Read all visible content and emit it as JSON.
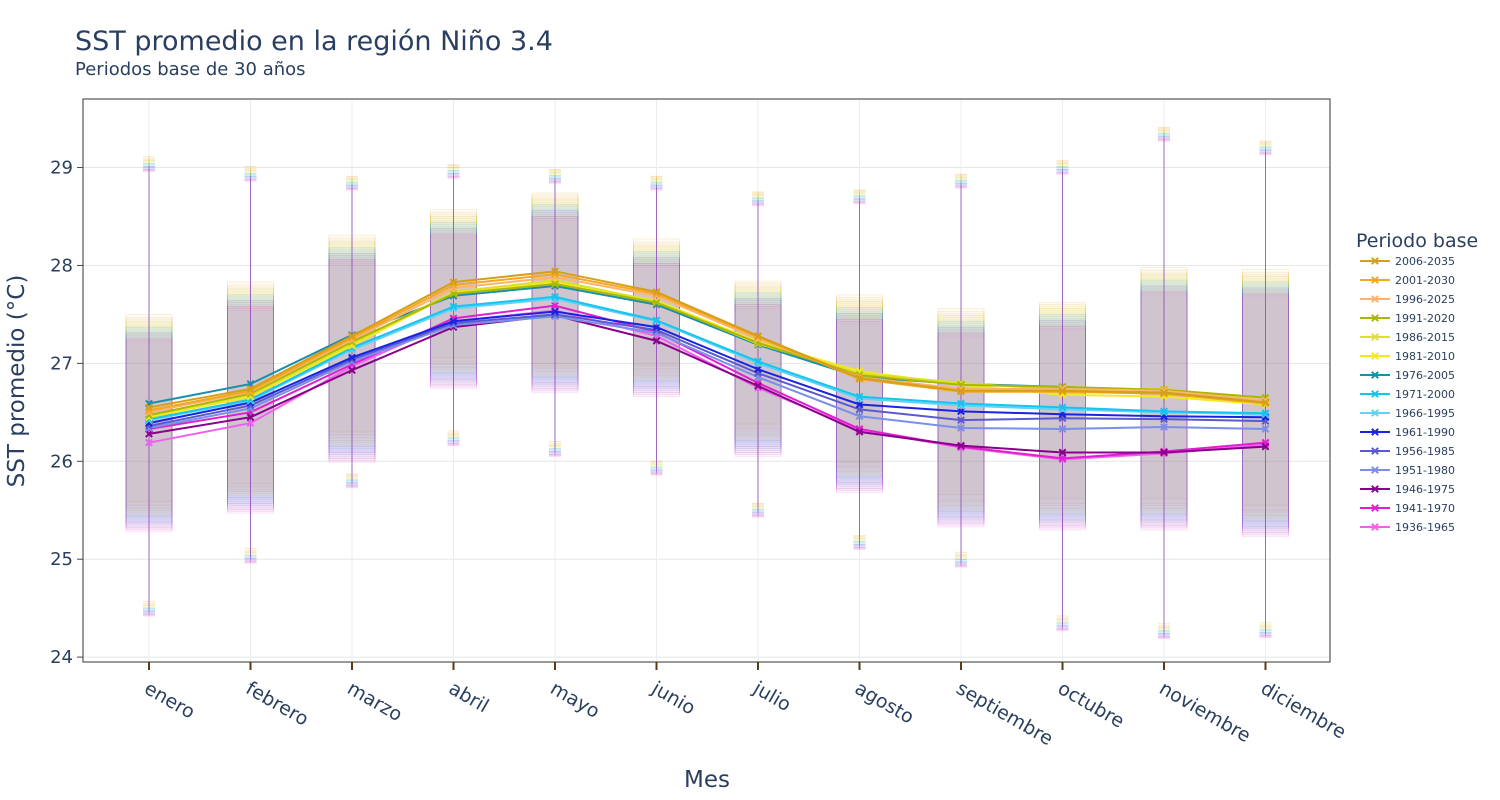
{
  "chart_data": {
    "type": "line",
    "title": "SST promedio en la región Niño 3.4",
    "subtitle": "Periodos base de 30 años",
    "xlabel": "Mes",
    "ylabel": "SST promedio (°C)",
    "ylim": [
      23.95,
      29.7
    ],
    "yticks": [
      24,
      25,
      26,
      27,
      28,
      29
    ],
    "grid": true,
    "legend_title": "Periodo base",
    "legend_position": "right",
    "categories": [
      "enero",
      "febrero",
      "marzo",
      "abril",
      "mayo",
      "junio",
      "julio",
      "agosto",
      "septiembre",
      "octubre",
      "noviembre",
      "diciembre"
    ],
    "series": [
      {
        "name": "2006-2035",
        "color": "#d4a017",
        "values": [
          26.55,
          26.74,
          27.28,
          27.83,
          27.94,
          27.73,
          27.28,
          26.85,
          26.72,
          26.72,
          26.7,
          26.6
        ],
        "q1": [
          25.59,
          25.77,
          26.3,
          27.06,
          27.0,
          26.98,
          26.38,
          25.99,
          25.66,
          25.62,
          25.62,
          25.55
        ],
        "q3": [
          27.5,
          27.83,
          28.31,
          28.57,
          28.74,
          28.27,
          27.84,
          27.7,
          27.56,
          27.62,
          27.98,
          27.96
        ],
        "min": [
          24.57,
          25.11,
          25.87,
          26.31,
          26.2,
          26.0,
          25.57,
          25.24,
          25.07,
          24.42,
          24.34,
          24.35
        ],
        "max": [
          29.11,
          29.01,
          28.91,
          29.03,
          28.98,
          28.91,
          28.75,
          28.77,
          28.93,
          29.07,
          29.41,
          29.27
        ]
      },
      {
        "name": "2001-2030",
        "color": "#f5a623",
        "values": [
          26.52,
          26.72,
          27.26,
          27.8,
          27.91,
          27.71,
          27.27,
          26.84,
          26.71,
          26.71,
          26.69,
          26.59
        ],
        "q1": [
          25.55,
          25.74,
          26.27,
          27.02,
          26.97,
          26.94,
          26.33,
          25.95,
          25.6,
          25.57,
          25.57,
          25.5
        ],
        "q3": [
          27.47,
          27.8,
          28.28,
          28.54,
          28.72,
          28.24,
          27.82,
          27.67,
          27.53,
          27.6,
          27.95,
          27.93
        ],
        "min": [
          24.55,
          25.09,
          25.86,
          26.29,
          26.18,
          25.99,
          25.56,
          25.23,
          25.05,
          24.4,
          24.32,
          24.33
        ],
        "max": [
          29.09,
          28.99,
          28.9,
          29.02,
          28.97,
          28.9,
          28.74,
          28.76,
          28.92,
          29.06,
          29.4,
          29.26
        ]
      },
      {
        "name": "1996-2025",
        "color": "#ffb26b",
        "values": [
          26.5,
          26.71,
          27.24,
          27.77,
          27.88,
          27.69,
          27.25,
          26.86,
          26.74,
          26.74,
          26.72,
          26.62
        ],
        "q1": [
          25.52,
          25.71,
          26.24,
          26.99,
          26.95,
          26.91,
          26.3,
          25.93,
          25.58,
          25.55,
          25.55,
          25.48
        ],
        "q3": [
          27.45,
          27.78,
          28.26,
          28.52,
          28.7,
          28.22,
          27.8,
          27.65,
          27.51,
          27.58,
          27.93,
          27.91
        ],
        "min": [
          24.54,
          25.08,
          25.85,
          26.28,
          26.17,
          25.98,
          25.55,
          25.22,
          25.04,
          24.39,
          24.31,
          24.32
        ],
        "max": [
          29.08,
          28.98,
          28.89,
          29.01,
          28.96,
          28.89,
          28.73,
          28.75,
          28.91,
          29.05,
          29.39,
          29.25
        ]
      },
      {
        "name": "1991-2020",
        "color": "#a9b800",
        "values": [
          26.47,
          26.69,
          27.22,
          27.71,
          27.81,
          27.62,
          27.21,
          26.88,
          26.78,
          26.76,
          26.73,
          26.65
        ],
        "q1": [
          25.5,
          25.69,
          26.21,
          26.96,
          26.92,
          26.88,
          26.27,
          25.9,
          25.55,
          25.52,
          25.52,
          25.45
        ],
        "q3": [
          27.43,
          27.76,
          28.24,
          28.5,
          28.68,
          28.2,
          27.78,
          27.63,
          27.49,
          27.56,
          27.91,
          27.89
        ],
        "min": [
          24.53,
          25.07,
          25.84,
          26.27,
          26.16,
          25.97,
          25.54,
          25.21,
          25.03,
          24.38,
          24.3,
          24.31
        ],
        "max": [
          29.07,
          28.97,
          28.88,
          29.0,
          28.95,
          28.88,
          28.72,
          28.74,
          28.9,
          29.04,
          29.38,
          29.24
        ]
      },
      {
        "name": "1986-2015",
        "color": "#dde02c",
        "values": [
          26.47,
          26.68,
          27.2,
          27.73,
          27.85,
          27.63,
          27.2,
          26.9,
          26.8,
          26.73,
          26.74,
          26.62
        ],
        "q1": [
          25.48,
          25.67,
          26.19,
          26.94,
          26.9,
          26.86,
          26.25,
          25.88,
          25.53,
          25.5,
          25.5,
          25.43
        ],
        "q3": [
          27.41,
          27.74,
          28.22,
          28.48,
          28.66,
          28.18,
          27.76,
          27.61,
          27.47,
          27.54,
          27.89,
          27.87
        ],
        "min": [
          24.52,
          25.06,
          25.83,
          26.26,
          26.15,
          25.96,
          25.53,
          25.2,
          25.02,
          24.37,
          24.29,
          24.3
        ],
        "max": [
          29.06,
          28.96,
          28.87,
          28.99,
          28.94,
          28.87,
          28.71,
          28.73,
          28.89,
          29.03,
          29.37,
          29.23
        ]
      },
      {
        "name": "1981-2010",
        "color": "#f2ea21",
        "values": [
          26.45,
          26.66,
          27.18,
          27.72,
          27.83,
          27.64,
          27.22,
          26.92,
          26.78,
          26.68,
          26.66,
          26.58
        ],
        "q1": [
          25.46,
          25.65,
          26.17,
          26.92,
          26.88,
          26.84,
          26.23,
          25.86,
          25.51,
          25.48,
          25.48,
          25.41
        ],
        "q3": [
          27.39,
          27.72,
          28.2,
          28.46,
          28.64,
          28.16,
          27.74,
          27.59,
          27.45,
          27.52,
          27.87,
          27.85
        ],
        "min": [
          24.51,
          25.05,
          25.82,
          26.25,
          26.14,
          25.95,
          25.52,
          25.19,
          25.01,
          24.36,
          24.28,
          24.29
        ],
        "max": [
          29.05,
          28.95,
          28.86,
          28.98,
          28.93,
          28.86,
          28.7,
          28.72,
          28.88,
          29.02,
          29.36,
          29.22
        ]
      },
      {
        "name": "1976-2005",
        "color": "#1a8fa8",
        "values": [
          26.59,
          26.79,
          27.29,
          27.69,
          27.79,
          27.6,
          27.19,
          26.86,
          26.79,
          26.76,
          26.71,
          26.61
        ],
        "q1": [
          25.44,
          25.63,
          26.15,
          26.9,
          26.86,
          26.82,
          26.21,
          25.84,
          25.49,
          25.46,
          25.46,
          25.39
        ],
        "q3": [
          27.37,
          27.7,
          28.18,
          28.44,
          28.62,
          28.14,
          27.72,
          27.57,
          27.43,
          27.5,
          27.85,
          27.83
        ],
        "min": [
          24.5,
          25.04,
          25.81,
          26.24,
          26.13,
          25.94,
          25.51,
          25.18,
          25.0,
          24.35,
          24.27,
          24.28
        ],
        "max": [
          29.04,
          28.94,
          28.85,
          28.97,
          28.92,
          28.85,
          28.69,
          28.71,
          28.87,
          29.01,
          29.35,
          29.21
        ]
      },
      {
        "name": "1971-2000",
        "color": "#17c3f0",
        "values": [
          26.43,
          26.63,
          27.16,
          27.58,
          27.68,
          27.44,
          27.02,
          26.66,
          26.59,
          26.55,
          26.51,
          26.49
        ],
        "q1": [
          25.42,
          25.61,
          26.13,
          26.88,
          26.84,
          26.8,
          26.19,
          25.82,
          25.47,
          25.44,
          25.44,
          25.37
        ],
        "q3": [
          27.35,
          27.68,
          28.16,
          28.42,
          28.6,
          28.12,
          27.7,
          27.55,
          27.41,
          27.48,
          27.83,
          27.81
        ],
        "min": [
          24.49,
          25.03,
          25.8,
          26.23,
          26.12,
          25.93,
          25.5,
          25.17,
          24.99,
          24.34,
          24.26,
          24.27
        ],
        "max": [
          29.03,
          28.93,
          28.84,
          28.96,
          28.91,
          28.84,
          28.68,
          28.7,
          28.86,
          29.0,
          29.34,
          29.2
        ]
      },
      {
        "name": "1966-1995",
        "color": "#5fd3f7",
        "values": [
          26.42,
          26.62,
          27.14,
          27.56,
          27.66,
          27.43,
          27.0,
          26.64,
          26.57,
          26.53,
          26.5,
          26.48
        ],
        "q1": [
          25.4,
          25.59,
          26.11,
          26.86,
          26.82,
          26.78,
          26.17,
          25.8,
          25.45,
          25.42,
          25.42,
          25.35
        ],
        "q3": [
          27.33,
          27.66,
          28.14,
          28.4,
          28.58,
          28.1,
          27.68,
          27.53,
          27.39,
          27.46,
          27.81,
          27.79
        ],
        "min": [
          24.48,
          25.02,
          25.79,
          26.22,
          26.11,
          25.92,
          25.49,
          25.16,
          24.98,
          24.33,
          24.25,
          24.26
        ],
        "max": [
          29.02,
          28.92,
          28.83,
          28.95,
          28.9,
          28.83,
          28.67,
          28.69,
          28.85,
          28.99,
          29.33,
          29.19
        ]
      },
      {
        "name": "1961-1990",
        "color": "#1a24e0",
        "values": [
          26.39,
          26.6,
          27.06,
          27.43,
          27.53,
          27.37,
          26.94,
          26.58,
          26.51,
          26.48,
          26.46,
          26.45
        ],
        "q1": [
          25.38,
          25.57,
          26.09,
          26.84,
          26.8,
          26.76,
          26.15,
          25.78,
          25.43,
          25.4,
          25.4,
          25.33
        ],
        "q3": [
          27.31,
          27.64,
          28.12,
          28.38,
          28.56,
          28.08,
          27.66,
          27.51,
          27.37,
          27.44,
          27.79,
          27.77
        ],
        "min": [
          24.47,
          25.01,
          25.78,
          26.21,
          26.1,
          25.91,
          25.48,
          25.15,
          24.97,
          24.32,
          24.24,
          24.25
        ],
        "max": [
          29.01,
          28.91,
          28.82,
          28.94,
          28.89,
          28.82,
          28.66,
          28.68,
          28.84,
          28.98,
          29.32,
          29.18
        ]
      },
      {
        "name": "1956-1985",
        "color": "#5a5ad0",
        "values": [
          26.36,
          26.57,
          27.04,
          27.41,
          27.5,
          27.34,
          26.9,
          26.53,
          26.42,
          26.44,
          26.43,
          26.41
        ],
        "q1": [
          25.36,
          25.55,
          26.07,
          26.82,
          26.78,
          26.74,
          26.13,
          25.76,
          25.41,
          25.38,
          25.38,
          25.31
        ],
        "q3": [
          27.29,
          27.62,
          28.1,
          28.36,
          28.54,
          28.06,
          27.64,
          27.49,
          27.35,
          27.42,
          27.77,
          27.75
        ],
        "min": [
          24.46,
          25.0,
          25.77,
          26.2,
          26.09,
          25.9,
          25.47,
          25.14,
          24.96,
          24.31,
          24.23,
          24.24
        ],
        "max": [
          29.0,
          28.9,
          28.81,
          28.93,
          28.88,
          28.81,
          28.65,
          28.67,
          28.83,
          28.97,
          29.31,
          29.17
        ]
      },
      {
        "name": "1951-1980",
        "color": "#7a8fe8",
        "values": [
          26.34,
          26.54,
          27.02,
          27.39,
          27.48,
          27.31,
          26.86,
          26.46,
          26.34,
          26.33,
          26.35,
          26.33
        ],
        "q1": [
          25.34,
          25.53,
          26.05,
          26.8,
          26.76,
          26.72,
          26.11,
          25.74,
          25.39,
          25.36,
          25.36,
          25.29
        ],
        "q3": [
          27.27,
          27.6,
          28.08,
          28.34,
          28.52,
          28.04,
          27.62,
          27.47,
          27.33,
          27.4,
          27.75,
          27.73
        ],
        "min": [
          24.45,
          24.99,
          25.76,
          26.19,
          26.08,
          25.89,
          25.46,
          25.13,
          24.95,
          24.3,
          24.22,
          24.23
        ],
        "max": [
          28.99,
          28.89,
          28.8,
          28.92,
          28.87,
          28.8,
          28.64,
          28.66,
          28.82,
          28.96,
          29.3,
          29.16
        ]
      },
      {
        "name": "1946-1975",
        "color": "#8b008b",
        "values": [
          26.28,
          26.45,
          26.93,
          27.37,
          27.49,
          27.23,
          26.77,
          26.3,
          26.16,
          26.09,
          26.09,
          26.15
        ],
        "q1": [
          25.32,
          25.51,
          26.03,
          26.78,
          26.74,
          26.7,
          26.09,
          25.72,
          25.37,
          25.34,
          25.34,
          25.27
        ],
        "q3": [
          27.25,
          27.58,
          28.06,
          28.32,
          28.5,
          28.02,
          27.6,
          27.45,
          27.31,
          27.38,
          27.73,
          27.71
        ],
        "min": [
          24.44,
          24.98,
          25.75,
          26.18,
          26.07,
          25.88,
          25.45,
          25.12,
          24.94,
          24.29,
          24.21,
          24.22
        ],
        "max": [
          28.98,
          28.88,
          28.79,
          28.91,
          28.86,
          28.79,
          28.63,
          28.65,
          28.81,
          28.95,
          29.29,
          29.15
        ]
      },
      {
        "name": "1941-1970",
        "color": "#e020d0",
        "values": [
          26.33,
          26.5,
          26.99,
          27.46,
          27.59,
          27.32,
          26.8,
          26.33,
          26.15,
          26.03,
          26.1,
          26.19
        ],
        "q1": [
          25.3,
          25.49,
          26.01,
          26.76,
          26.72,
          26.68,
          26.07,
          25.7,
          25.35,
          25.32,
          25.32,
          25.25
        ],
        "q3": [
          27.23,
          27.56,
          28.04,
          28.3,
          28.48,
          28.0,
          27.58,
          27.43,
          27.29,
          27.36,
          27.71,
          27.69
        ],
        "min": [
          24.43,
          24.97,
          25.74,
          26.17,
          26.06,
          25.87,
          25.44,
          25.11,
          24.93,
          24.28,
          24.2,
          24.21
        ],
        "max": [
          28.97,
          28.87,
          28.78,
          28.9,
          28.85,
          28.78,
          28.62,
          28.64,
          28.8,
          28.94,
          29.28,
          29.14
        ]
      },
      {
        "name": "1936-1965",
        "color": "#f060f0",
        "values": [
          26.19,
          26.39,
          26.97,
          27.43,
          27.54,
          27.28,
          26.75,
          26.32,
          26.14,
          26.02,
          26.08,
          26.17
        ],
        "q1": [
          25.28,
          25.47,
          25.99,
          26.74,
          26.7,
          26.66,
          26.05,
          25.68,
          25.33,
          25.3,
          25.3,
          25.23
        ],
        "q3": [
          27.21,
          27.54,
          28.02,
          28.28,
          28.46,
          27.98,
          27.56,
          27.41,
          27.27,
          27.34,
          27.69,
          27.67
        ],
        "min": [
          24.42,
          24.96,
          25.73,
          26.16,
          26.05,
          25.86,
          25.43,
          25.1,
          24.92,
          24.27,
          24.19,
          24.2
        ],
        "max": [
          28.96,
          28.86,
          28.77,
          28.89,
          28.84,
          28.77,
          28.61,
          28.63,
          28.79,
          28.93,
          29.27,
          29.13
        ]
      }
    ]
  }
}
